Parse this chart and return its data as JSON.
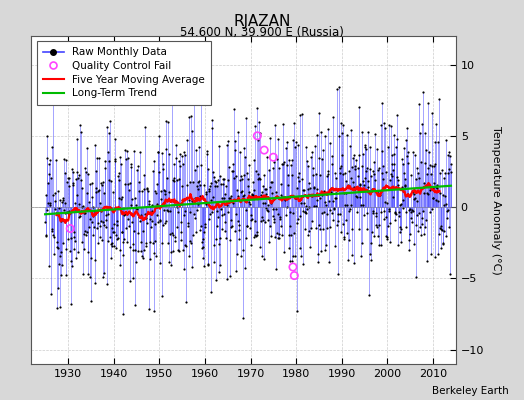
{
  "title": "RJAZAN",
  "subtitle": "54.600 N, 39.900 E (Russia)",
  "ylabel": "Temperature Anomaly (°C)",
  "xlabel_credit": "Berkeley Earth",
  "xlim": [
    1922,
    2015
  ],
  "ylim": [
    -11,
    12
  ],
  "yticks": [
    -10,
    -5,
    0,
    5,
    10
  ],
  "xticks": [
    1930,
    1940,
    1950,
    1960,
    1970,
    1980,
    1990,
    2000,
    2010
  ],
  "start_year": 1925,
  "end_year": 2013,
  "bg_color": "#d8d8d8",
  "plot_bg_color": "#ffffff",
  "monthly_line_color": "#4444ff",
  "monthly_dot_color": "#000000",
  "qc_fail_color": "#ff44ff",
  "moving_avg_color": "#ff0000",
  "trend_color": "#00bb00",
  "seed": 12345
}
